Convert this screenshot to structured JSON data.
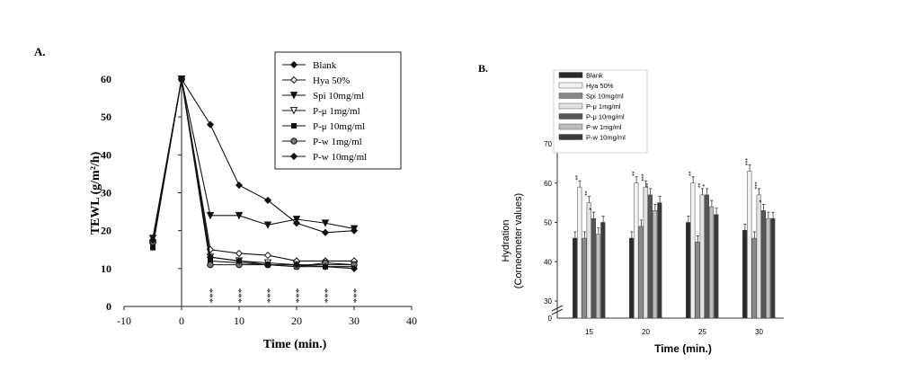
{
  "chart_data": [
    {
      "type": "line",
      "panel_label": "A.",
      "xlabel": "Time (min.)",
      "ylabel": "TEWL (g/m²/h)",
      "xlim": [
        -10,
        40
      ],
      "ylim": [
        0,
        60
      ],
      "xticks": [
        "-10",
        "0",
        "10",
        "20",
        "30",
        "40"
      ],
      "yticks": [
        "0",
        "10",
        "20",
        "30",
        "40",
        "50",
        "60"
      ],
      "legend_position": "top-right",
      "significance_mark": "***",
      "significance_x": [
        5,
        10,
        15,
        20,
        25,
        30
      ],
      "x": [
        -5,
        0,
        5,
        10,
        15,
        20,
        25,
        30
      ],
      "series": [
        {
          "name": "Blank",
          "marker": "diamond-filled",
          "values": [
            17.5,
            60,
            48,
            32,
            28,
            22,
            19.5,
            20
          ]
        },
        {
          "name": "Hya 50%",
          "marker": "diamond-open",
          "values": [
            17,
            60,
            15,
            14,
            13.5,
            12,
            12,
            12
          ]
        },
        {
          "name": "Spi 10mg/ml",
          "marker": "triangle-down-filled",
          "values": [
            18,
            60,
            24,
            24,
            21.5,
            23,
            22,
            20.5
          ]
        },
        {
          "name": "P-μ 1mg/ml",
          "marker": "triangle-down-open",
          "values": [
            16,
            60,
            13,
            12,
            11.5,
            11,
            11,
            11
          ]
        },
        {
          "name": "P-μ 10mg/ml",
          "marker": "square-filled",
          "values": [
            15.5,
            60,
            12,
            11.5,
            11,
            10.5,
            10.5,
            10.5
          ]
        },
        {
          "name": "P-w 1mg/ml",
          "marker": "circle-half",
          "values": [
            17,
            60,
            11,
            11,
            11,
            10.5,
            11.5,
            11
          ]
        },
        {
          "name": "P-w 10mg/ml",
          "marker": "diamond-filled",
          "values": [
            17.5,
            60,
            13,
            12,
            11,
            11,
            10.5,
            10
          ]
        }
      ]
    },
    {
      "type": "bar",
      "panel_label": "B.",
      "xlabel": "Time (min.)",
      "ylabel": "Hydration",
      "ylabel2": "(Corneometer values)",
      "categories": [
        "15",
        "20",
        "25",
        "30"
      ],
      "ylim": [
        30,
        70
      ],
      "yticks": [
        "30",
        "40",
        "50",
        "60",
        "70"
      ],
      "y_zero_label": "0",
      "axis_break": true,
      "legend_position": "top-left",
      "series": [
        {
          "name": "Blank",
          "color": "#2a2a2a",
          "values": [
            46,
            46,
            50,
            48
          ]
        },
        {
          "name": "Hya 50%",
          "color": "#f2f2f2",
          "values": [
            59,
            60,
            60,
            63
          ]
        },
        {
          "name": "Spi 10mg/ml",
          "color": "#8a8a8a",
          "values": [
            46,
            49,
            45,
            46
          ]
        },
        {
          "name": "P-μ 1mg/ml",
          "color": "#e2e2e2",
          "values": [
            55,
            59,
            57,
            57
          ]
        },
        {
          "name": "P-μ 10mg/ml",
          "color": "#555555",
          "values": [
            51,
            57,
            57,
            53
          ]
        },
        {
          "name": "P-w 1mg/ml",
          "color": "#bdbdbd",
          "values": [
            47,
            53,
            54,
            51
          ]
        },
        {
          "name": "P-w 10mg/ml",
          "color": "#3a3a3a",
          "values": [
            50,
            55,
            52,
            51
          ]
        }
      ],
      "significance": [
        {
          "category": 0,
          "series": 1,
          "mark": "**"
        },
        {
          "category": 0,
          "series": 3,
          "mark": "**"
        },
        {
          "category": 0,
          "series": 4,
          "mark": "*"
        },
        {
          "category": 1,
          "series": 1,
          "mark": "**"
        },
        {
          "category": 1,
          "series": 3,
          "mark": "***"
        },
        {
          "category": 1,
          "series": 4,
          "mark": "**"
        },
        {
          "category": 2,
          "series": 1,
          "mark": "**"
        },
        {
          "category": 2,
          "series": 3,
          "mark": "**"
        },
        {
          "category": 2,
          "series": 4,
          "mark": "*"
        },
        {
          "category": 3,
          "series": 1,
          "mark": "***"
        },
        {
          "category": 3,
          "series": 3,
          "mark": "***"
        },
        {
          "category": 3,
          "series": 4,
          "mark": "*"
        }
      ]
    }
  ]
}
